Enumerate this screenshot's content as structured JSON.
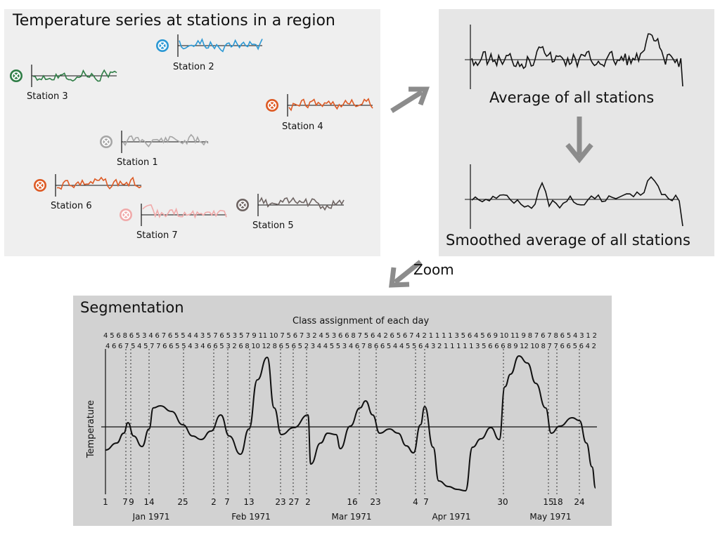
{
  "stations_panel": {
    "title": "Temperature series at stations in a region",
    "stations": [
      {
        "label": "Station 1",
        "color": "#a6a6a6"
      },
      {
        "label": "Station 2",
        "color": "#2b98d4"
      },
      {
        "label": "Station 3",
        "color": "#2f7d46"
      },
      {
        "label": "Station 4",
        "color": "#dd5a24"
      },
      {
        "label": "Station 5",
        "color": "#6e6462"
      },
      {
        "label": "Station 6",
        "color": "#dd5a24"
      },
      {
        "label": "Station 7",
        "color": "#f0aaaa"
      }
    ]
  },
  "average_panel": {
    "average_label": "Average of all stations",
    "smoothed_label": "Smoothed average of all stations"
  },
  "zoom_label": "Zoom",
  "segmentation": {
    "title": "Segmentation",
    "class_title": "Class assignment of each day",
    "class_row1": "4 5 6 8 6 5 3 4 6 7 6 5 5 4 4 3 5 7 6 5 3 5 7 9 11 10 7 5 6 7 3 2 4 5 3 6 6 8 7 5 6 4 2 6 5 6 7 4 2 1 1 1 1 3 5 6 4 5 6 9 10 11 9 8 7 6 7 8 6 5 4 3 1 2",
    "class_row2": "4 6 6 7 5 4 5 7 7 6 6 5 5 4 3 4 6 6 5 3 2 6 8 10 12 8 6 5 6 5 2 3 4 4 5 5 3 4 6 7 8 6 6 5 4 4 5 5 6 4 3 2 1 1 1 1 1 3 5 6 6 6 8 9 12 10 8 7 7 6 6 5 6 4 2",
    "ylabel": "Temperature",
    "day_ticks": [
      "1",
      "7",
      "9",
      "14",
      "25",
      "2",
      "7",
      "13",
      "23",
      "27",
      "2",
      "16",
      "23",
      "4",
      "7",
      "30",
      "15",
      "18",
      "24"
    ],
    "months": [
      "Jan 1971",
      "Feb 1971",
      "Mar 1971",
      "Apr 1971",
      "May 1971"
    ]
  }
}
